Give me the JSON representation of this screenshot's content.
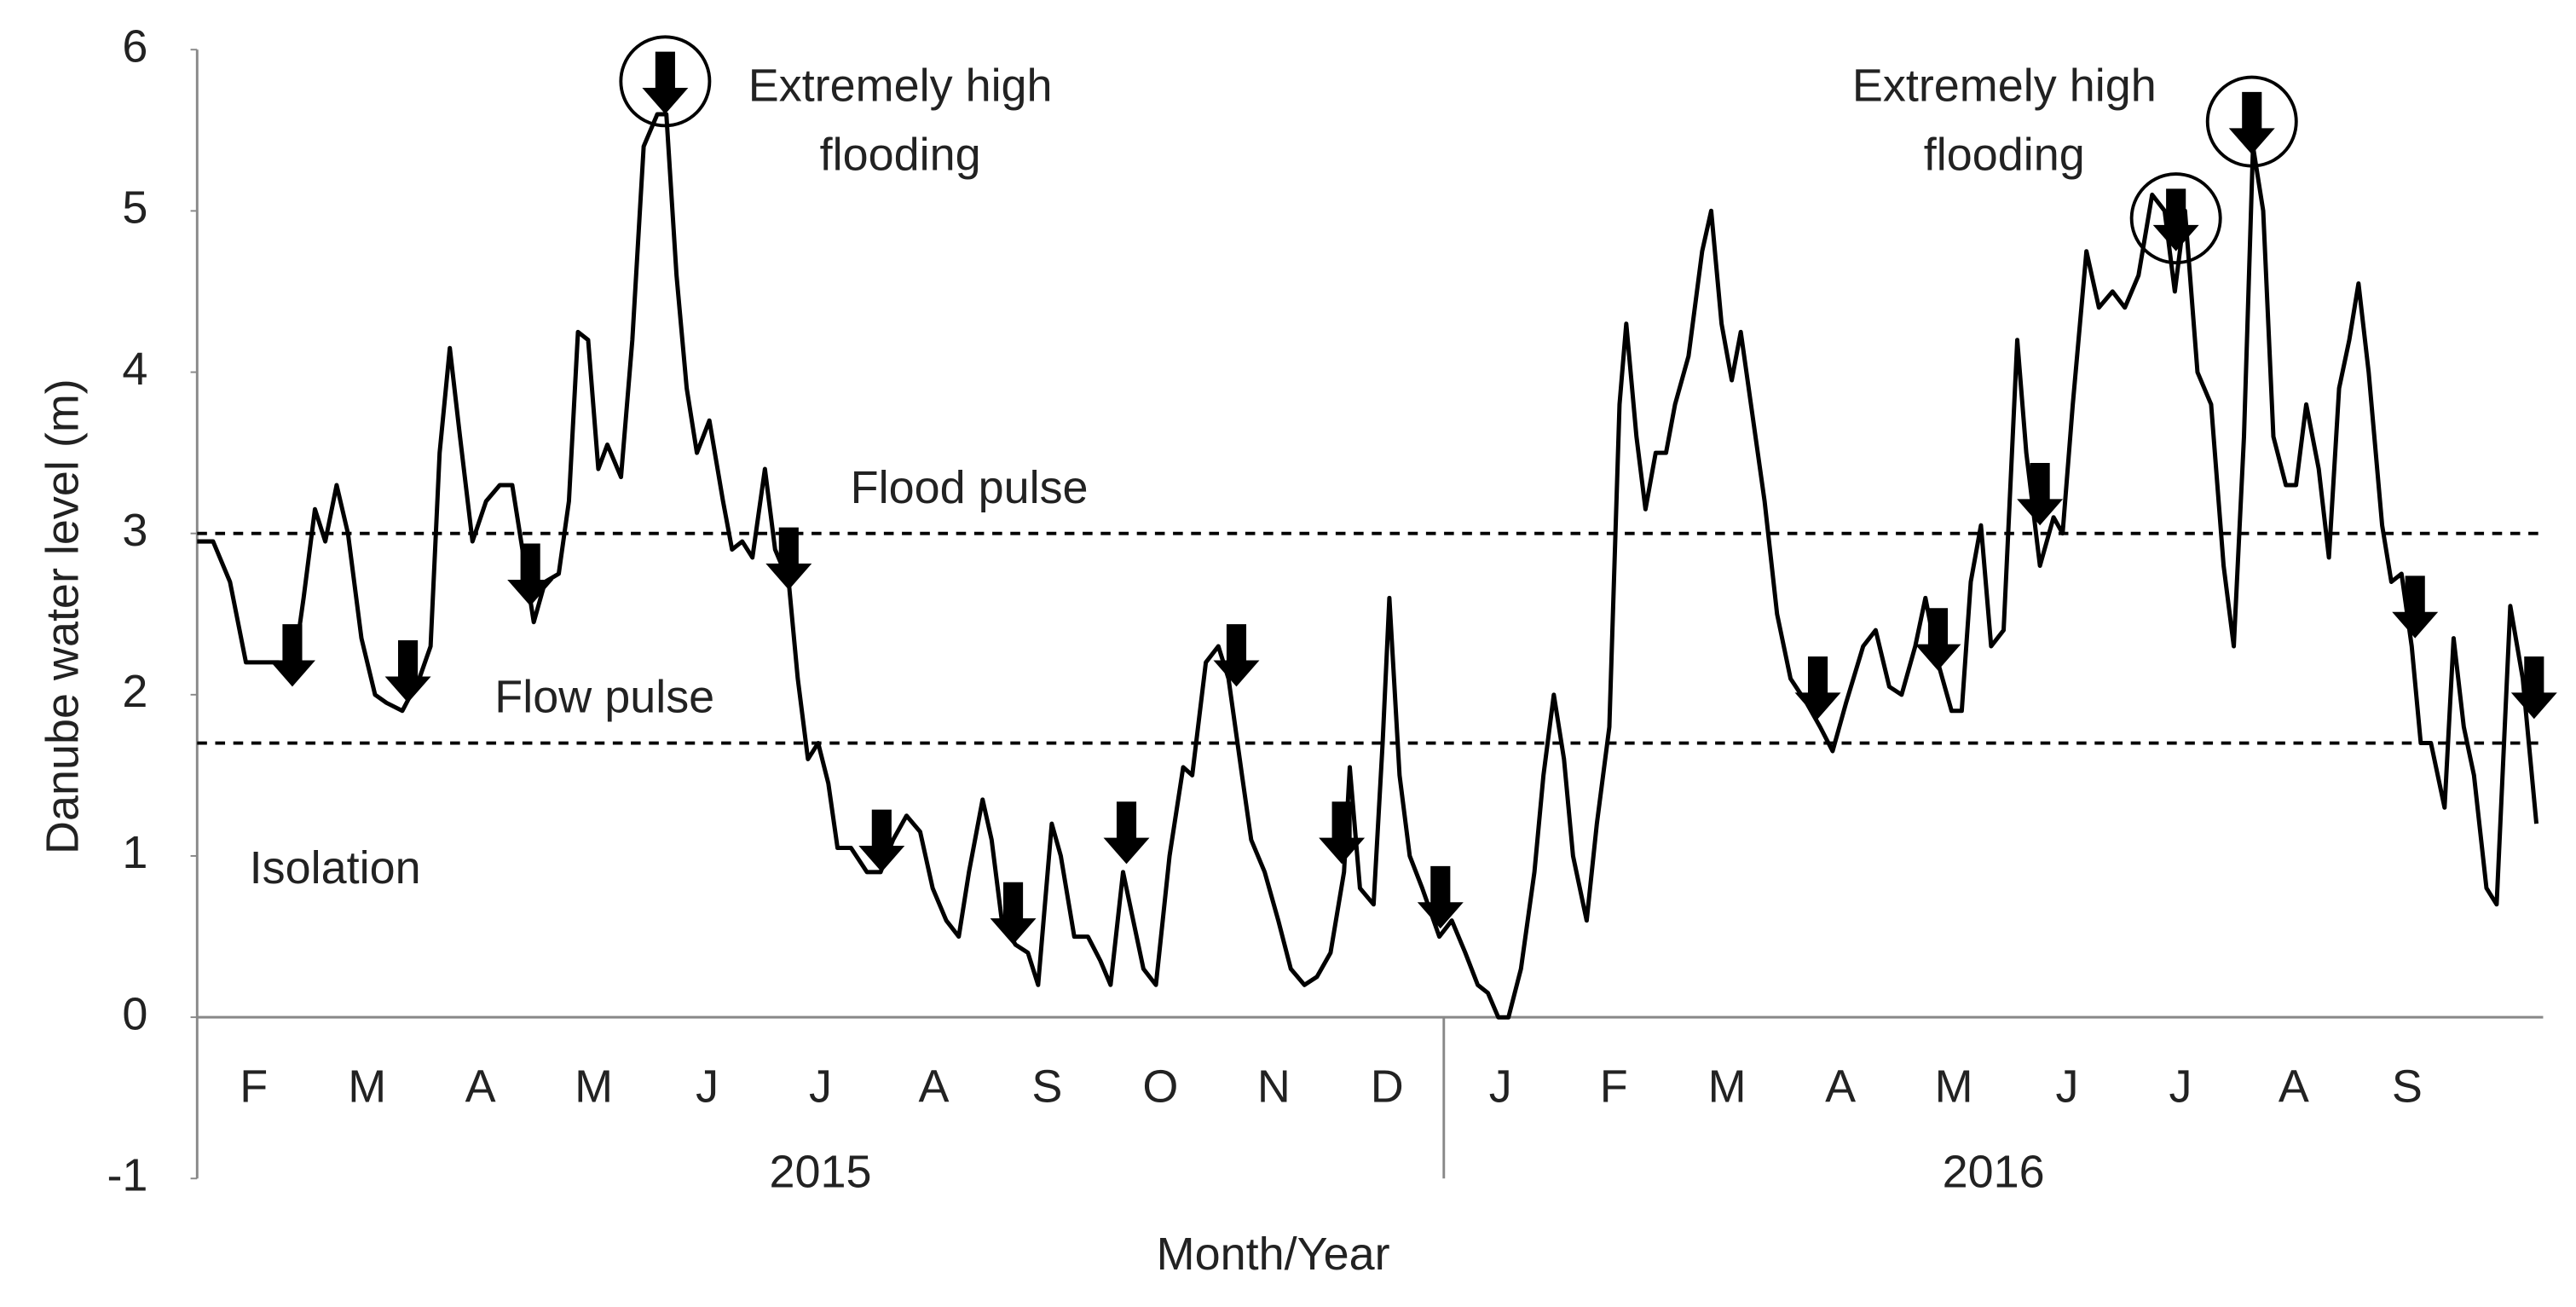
{
  "chart_data": {
    "type": "line",
    "y_label": "Danube water level (m)",
    "x_label": "Month/Year",
    "ylim": [
      -1,
      6
    ],
    "yticks": [
      -1,
      0,
      1,
      2,
      3,
      4,
      5,
      6
    ],
    "xlim": [
      0,
      20.7
    ],
    "year_groups": [
      {
        "label": "2015",
        "months": [
          "F",
          "M",
          "A",
          "M",
          "J",
          "J",
          "A",
          "S",
          "O",
          "N",
          "D"
        ]
      },
      {
        "label": "2016",
        "months": [
          "J",
          "F",
          "M",
          "A",
          "M",
          "J",
          "J",
          "A",
          "S"
        ]
      }
    ],
    "series": [
      {
        "color": "#000000",
        "x": [
          0,
          0.14,
          0.29,
          0.43,
          0.58,
          0.72,
          0.84,
          0.94,
          1.04,
          1.13,
          1.23,
          1.33,
          1.45,
          1.57,
          1.67,
          1.81,
          1.96,
          2.06,
          2.14,
          2.23,
          2.32,
          2.43,
          2.55,
          2.67,
          2.78,
          2.87,
          2.97,
          3.07,
          3.19,
          3.28,
          3.36,
          3.45,
          3.54,
          3.62,
          3.74,
          3.84,
          3.94,
          4.06,
          4.14,
          4.23,
          4.32,
          4.41,
          4.52,
          4.64,
          4.72,
          4.81,
          4.9,
          5.01,
          5.1,
          5.22,
          5.3,
          5.39,
          5.48,
          5.57,
          5.65,
          5.77,
          5.91,
          6.03,
          6.14,
          6.26,
          6.38,
          6.49,
          6.61,
          6.72,
          6.81,
          6.93,
          7.01,
          7.1,
          7.22,
          7.33,
          7.42,
          7.54,
          7.62,
          7.74,
          7.86,
          7.97,
          8.06,
          8.17,
          8.26,
          8.35,
          8.46,
          8.58,
          8.7,
          8.78,
          8.9,
          9.01,
          9.1,
          9.22,
          9.3,
          9.42,
          9.54,
          9.65,
          9.77,
          9.88,
          10.0,
          10.12,
          10.17,
          10.26,
          10.38,
          10.46,
          10.52,
          10.61,
          10.7,
          10.81,
          10.96,
          11.07,
          11.19,
          11.3,
          11.39,
          11.48,
          11.57,
          11.68,
          11.8,
          11.88,
          11.97,
          12.06,
          12.14,
          12.26,
          12.35,
          12.46,
          12.55,
          12.61,
          12.7,
          12.78,
          12.87,
          12.96,
          13.04,
          13.16,
          13.28,
          13.36,
          13.45,
          13.54,
          13.62,
          13.71,
          13.83,
          13.94,
          14.06,
          14.2,
          14.32,
          14.43,
          14.55,
          14.7,
          14.81,
          14.93,
          15.04,
          15.16,
          15.25,
          15.36,
          15.48,
          15.57,
          15.65,
          15.74,
          15.83,
          15.94,
          16.06,
          16.14,
          16.26,
          16.38,
          16.46,
          16.55,
          16.67,
          16.78,
          16.9,
          17.01,
          17.13,
          17.25,
          17.36,
          17.45,
          17.54,
          17.65,
          17.77,
          17.88,
          17.97,
          18.06,
          18.14,
          18.23,
          18.32,
          18.43,
          18.52,
          18.61,
          18.72,
          18.81,
          18.9,
          18.99,
          19.07,
          19.16,
          19.28,
          19.36,
          19.45,
          19.54,
          19.62,
          19.71,
          19.83,
          19.91,
          20.0,
          20.09,
          20.2,
          20.29,
          20.41,
          20.52,
          20.64
        ],
        "values": [
          2.95,
          2.95,
          2.7,
          2.2,
          2.2,
          2.2,
          2.1,
          2.6,
          3.15,
          2.95,
          3.3,
          3.0,
          2.35,
          2.0,
          1.95,
          1.9,
          2.1,
          2.3,
          3.5,
          4.15,
          3.6,
          2.95,
          3.2,
          3.3,
          3.3,
          2.9,
          2.45,
          2.7,
          2.75,
          3.2,
          4.25,
          4.2,
          3.4,
          3.55,
          3.35,
          4.2,
          5.4,
          5.6,
          5.6,
          4.6,
          3.9,
          3.5,
          3.7,
          3.2,
          2.9,
          2.95,
          2.85,
          3.4,
          2.9,
          2.7,
          2.1,
          1.6,
          1.7,
          1.45,
          1.05,
          1.05,
          0.9,
          0.9,
          1.1,
          1.25,
          1.15,
          0.8,
          0.6,
          0.5,
          0.9,
          1.35,
          1.1,
          0.6,
          0.45,
          0.4,
          0.2,
          1.2,
          1.0,
          0.5,
          0.5,
          0.35,
          0.2,
          0.9,
          0.6,
          0.3,
          0.2,
          1.0,
          1.55,
          1.5,
          2.2,
          2.3,
          2.1,
          1.5,
          1.1,
          0.9,
          0.6,
          0.3,
          0.2,
          0.25,
          0.4,
          0.9,
          1.55,
          0.8,
          0.7,
          1.7,
          2.6,
          1.5,
          1.0,
          0.8,
          0.5,
          0.6,
          0.4,
          0.2,
          0.15,
          0.0,
          0.0,
          0.3,
          0.9,
          1.5,
          2.0,
          1.6,
          1.0,
          0.6,
          1.2,
          1.8,
          3.8,
          4.3,
          3.6,
          3.15,
          3.5,
          3.5,
          3.8,
          4.1,
          4.75,
          5.0,
          4.3,
          3.95,
          4.25,
          3.8,
          3.2,
          2.5,
          2.1,
          1.95,
          1.8,
          1.65,
          1.95,
          2.3,
          2.4,
          2.05,
          2.0,
          2.3,
          2.6,
          2.2,
          1.9,
          1.9,
          2.7,
          3.05,
          2.3,
          2.4,
          4.2,
          3.5,
          2.8,
          3.1,
          3.0,
          3.8,
          4.75,
          4.4,
          4.5,
          4.4,
          4.6,
          5.1,
          5.0,
          4.5,
          5.0,
          4.0,
          3.8,
          2.8,
          2.3,
          3.6,
          5.4,
          5.0,
          3.6,
          3.3,
          3.3,
          3.8,
          3.4,
          2.85,
          3.9,
          4.2,
          4.55,
          4.0,
          3.05,
          2.7,
          2.75,
          2.3,
          1.7,
          1.7,
          1.3,
          2.35,
          1.8,
          1.5,
          0.8,
          0.7,
          2.55,
          2.1,
          1.2
        ]
      }
    ],
    "sampling_points": {
      "x": [
        0.84,
        1.86,
        2.94,
        4.13,
        5.22,
        6.04,
        7.2,
        8.2,
        9.17,
        10.1,
        10.97,
        14.3,
        15.36,
        16.26,
        17.46,
        18.13,
        19.57,
        20.62
      ],
      "values": [
        2.05,
        1.95,
        2.55,
        5.6,
        2.65,
        0.9,
        0.45,
        0.95,
        2.05,
        0.95,
        0.55,
        1.85,
        2.15,
        3.05,
        4.75,
        5.35,
        2.35,
        1.85
      ],
      "highlighted": [
        3,
        14,
        15
      ]
    },
    "reference_lines": [
      {
        "value": 3,
        "label": "Flood pulse"
      },
      {
        "value": 1.7,
        "label": "Flow pulse"
      }
    ],
    "annotations": [
      {
        "lines": [
          "Extremely high",
          "flooding"
        ]
      },
      {
        "lines": [
          "Extremely high",
          "flooding"
        ]
      },
      {
        "text": "Isolation"
      }
    ]
  }
}
